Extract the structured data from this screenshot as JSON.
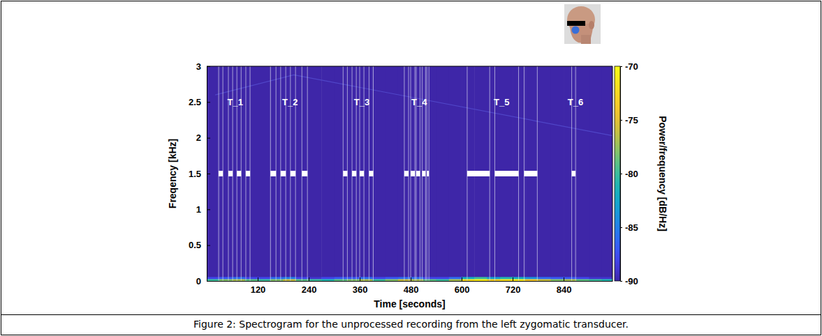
{
  "chart_data": {
    "type": "heatmap",
    "caption": "Figure 2: Spectrogram for the unprocessed recording from the left zygomatic transducer.",
    "x_label": "Time [seconds]",
    "y_label": "Freqency [kHz]",
    "xlim": [
      0,
      955
    ],
    "xticks": [
      120,
      240,
      360,
      480,
      600,
      720,
      840
    ],
    "ylim": [
      0,
      3
    ],
    "yticks": [
      0,
      0.5,
      1,
      1.5,
      2,
      2.5,
      3
    ],
    "x_bins": [
      0,
      30,
      60,
      90,
      120,
      150,
      180,
      210,
      240,
      270,
      300,
      330,
      360,
      390,
      420,
      450,
      480,
      510,
      540,
      570,
      600,
      630,
      660,
      690,
      720,
      750,
      780,
      810,
      840,
      870,
      900,
      930,
      955
    ],
    "y_bins": [
      0,
      0.03,
      0.06,
      3
    ],
    "z": [
      [
        -80,
        -78,
        -77,
        -79,
        -80,
        -78,
        -76,
        -79,
        -80,
        -81,
        -79,
        -78,
        -77,
        -80,
        -78,
        -76,
        -77,
        -79,
        -80,
        -77,
        -72,
        -71,
        -73,
        -72,
        -71,
        -74,
        -76,
        -78,
        -77,
        -79,
        -80,
        -81
      ],
      [
        -88,
        -87,
        -86,
        -88,
        -88,
        -86,
        -85,
        -88,
        -89,
        -88,
        -87,
        -87,
        -86,
        -88,
        -87,
        -86,
        -86,
        -88,
        -88,
        -86,
        -82,
        -80,
        -83,
        -81,
        -82,
        -84,
        -86,
        -87,
        -87,
        -88,
        -89,
        -89
      ],
      [
        -90,
        -90,
        -90,
        -90,
        -90,
        -90,
        -90,
        -90,
        -90,
        -90,
        -90,
        -90,
        -90,
        -90,
        -90,
        -90,
        -90,
        -90,
        -90,
        -90,
        -90,
        -90,
        -90,
        -90,
        -90,
        -90,
        -90,
        -90,
        -90,
        -90,
        -90,
        -90
      ]
    ],
    "colorbar": {
      "label": "Power/frequency [dB/Hz]",
      "zlim": [
        -90,
        -70
      ],
      "zticks": [
        -90,
        -85,
        -80,
        -75,
        -70
      ]
    },
    "markers": {
      "y": 1.5,
      "intervals": [
        [
          28,
          38
        ],
        [
          51,
          61
        ],
        [
          71,
          81
        ],
        [
          92,
          102
        ],
        [
          150,
          163
        ],
        [
          174,
          186
        ],
        [
          197,
          209
        ],
        [
          224,
          237
        ],
        [
          321,
          331
        ],
        [
          342,
          352
        ],
        [
          360,
          370
        ],
        [
          382,
          392
        ],
        [
          465,
          475
        ],
        [
          480,
          490
        ],
        [
          493,
          502
        ],
        [
          507,
          515
        ],
        [
          518,
          523
        ],
        [
          613,
          666
        ],
        [
          678,
          734
        ],
        [
          747,
          778
        ],
        [
          859,
          868
        ]
      ]
    },
    "annotations": [
      {
        "text": "T_1",
        "x": 67,
        "y": 2.5
      },
      {
        "text": "T_2",
        "x": 196,
        "y": 2.5
      },
      {
        "text": "T_3",
        "x": 365,
        "y": 2.5
      },
      {
        "text": "T_4",
        "x": 500,
        "y": 2.5
      },
      {
        "text": "T_5",
        "x": 694,
        "y": 2.5
      },
      {
        "text": "T_6",
        "x": 868,
        "y": 2.5
      }
    ],
    "series": [
      {
        "x": [
          20,
          205,
          955
        ],
        "values": [
          2.6,
          2.88,
          2.03
        ],
        "color": "#5046c8"
      }
    ]
  }
}
